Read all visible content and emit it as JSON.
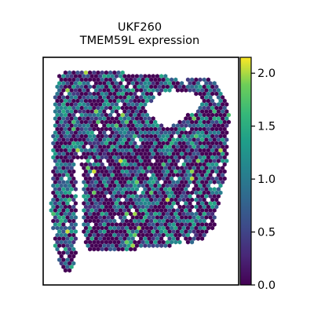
{
  "chart_data": {
    "type": "scatter",
    "title": "UKF260",
    "subtitle": "TMEM59L expression",
    "xlabel": "",
    "ylabel": "",
    "grid": false,
    "axes_ticks": false,
    "colormap": "viridis",
    "colorbar": {
      "min": 0.0,
      "max": 2.15,
      "ticks": [
        0.0,
        0.5,
        1.0,
        1.5,
        2.0
      ],
      "tick_labels": [
        "0.0",
        "0.5",
        "1.0",
        "1.5",
        "2.0"
      ]
    },
    "marker": "hexagon",
    "description": "Spatial transcriptomics spot map of tissue section; spot color encodes expression level",
    "value_distribution": {
      "zero_fraction": 0.45,
      "typical_max": 1.5,
      "peak": 2.1
    }
  }
}
